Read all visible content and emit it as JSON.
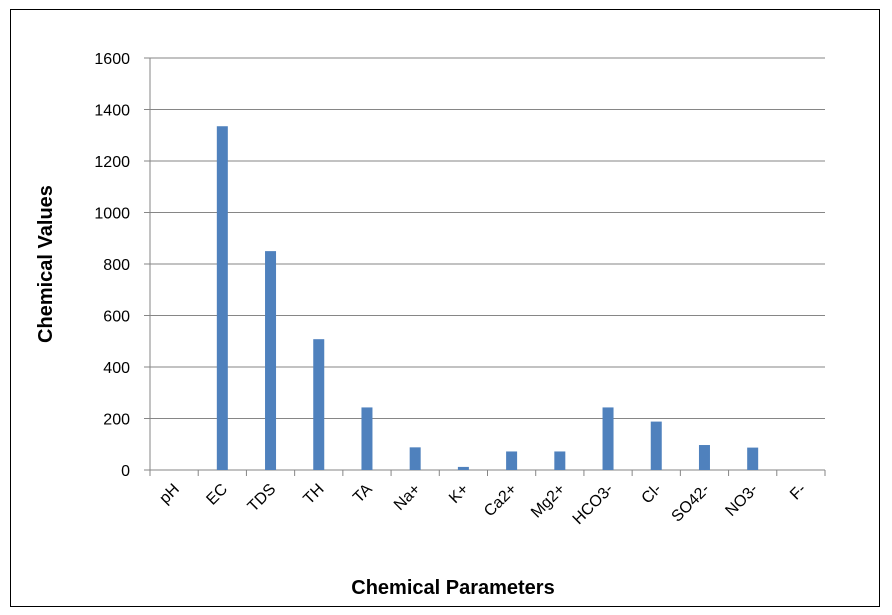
{
  "chart_data": {
    "type": "bar",
    "title": "",
    "xlabel": "Chemical Parameters",
    "ylabel": "Chemical Values",
    "ylim": [
      0,
      1600
    ],
    "yticks": [
      0,
      200,
      400,
      600,
      800,
      1000,
      1200,
      1400,
      1600
    ],
    "grid": true,
    "categories": [
      "pH",
      "EC",
      "TDS",
      "TH",
      "TA",
      "Na+",
      "K+",
      "Ca2+",
      "Mg2+",
      "HCO3-",
      "Cl-",
      "SO42-",
      "NO3-",
      "F-"
    ],
    "values": [
      0,
      1335,
      850,
      508,
      243,
      88,
      12,
      72,
      72,
      243,
      188,
      97,
      87,
      0
    ],
    "bar_color": "#4f81bd"
  }
}
